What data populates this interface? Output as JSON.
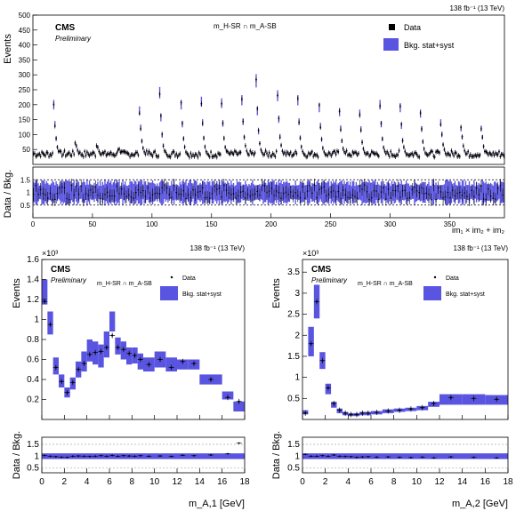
{
  "colors": {
    "band": "#5a55e0",
    "data": "#000000",
    "ref_line": "#000000"
  },
  "chart_data": [
    {
      "type": "bar",
      "panel": "top",
      "lumi": "138 fb⁻¹ (13 TeV)",
      "cms": "CMS",
      "prelim": "Preliminary",
      "region": "m_H-SR ∩ m_A-SB",
      "ylabel": "Events",
      "ratio_label": "Data / Bkg.",
      "xlabel": "im₁ × im₂ + im₂",
      "xlim": [
        0,
        396
      ],
      "ylim": [
        0,
        500
      ],
      "yticks": [
        50,
        100,
        150,
        200,
        250,
        300,
        350,
        400,
        450,
        500
      ],
      "xticks": [
        0,
        50,
        100,
        150,
        200,
        250,
        300,
        350
      ],
      "ratio_ylim": [
        0,
        2
      ],
      "ratio_yticks": [
        0.5,
        1,
        1.5
      ],
      "legend": [
        "Data",
        "Bkg. stat+syst"
      ],
      "peaks": [
        {
          "bin": 17,
          "value": 200
        },
        {
          "bin": 35,
          "value": 70
        },
        {
          "bin": 53,
          "value": 60
        },
        {
          "bin": 71,
          "value": 50
        },
        {
          "bin": 89,
          "value": 180
        },
        {
          "bin": 106,
          "value": 240
        },
        {
          "bin": 124,
          "value": 200
        },
        {
          "bin": 141,
          "value": 210
        },
        {
          "bin": 158,
          "value": 205
        },
        {
          "bin": 175,
          "value": 215
        },
        {
          "bin": 187,
          "value": 280
        },
        {
          "bin": 205,
          "value": 230
        },
        {
          "bin": 222,
          "value": 215
        },
        {
          "bin": 240,
          "value": 190
        },
        {
          "bin": 257,
          "value": 175
        },
        {
          "bin": 274,
          "value": 170
        },
        {
          "bin": 291,
          "value": 200
        },
        {
          "bin": 308,
          "value": 190
        },
        {
          "bin": 325,
          "value": 170
        },
        {
          "bin": 342,
          "value": 140
        },
        {
          "bin": 359,
          "value": 120
        },
        {
          "bin": 376,
          "value": 120
        }
      ],
      "baseline": 25
    },
    {
      "type": "bar",
      "panel": "bottom-left",
      "lumi": "138 fb⁻¹ (13 TeV)",
      "cms": "CMS",
      "prelim": "Preliminary",
      "region": "m_H-SR ∩ m_A-SB",
      "exponent": "×10³",
      "ylabel": "Events",
      "ratio_label": "Data / Bkg.",
      "xlabel": "m_A,1 [GeV]",
      "xlim": [
        0,
        18
      ],
      "ylim": [
        0,
        1.6
      ],
      "yticks": [
        0.2,
        0.4,
        0.6,
        0.8,
        1,
        1.2,
        1.4,
        1.6
      ],
      "xticks": [
        0,
        2,
        4,
        6,
        8,
        10,
        12,
        14,
        16,
        18
      ],
      "ratio_ylim": [
        0.3,
        1.8
      ],
      "ratio_yticks": [
        0.5,
        1,
        1.5
      ],
      "legend": [
        "Data",
        "Bkg. stat+syst"
      ],
      "bin_edges": [
        0,
        0.5,
        1,
        1.5,
        2,
        2.5,
        3,
        3.5,
        4,
        4.5,
        5,
        5.5,
        6,
        6.5,
        7,
        7.5,
        8,
        8.5,
        9,
        10,
        11,
        12,
        13,
        14,
        16,
        17,
        18
      ],
      "bkg_low": [
        1.15,
        0.85,
        0.45,
        0.32,
        0.22,
        0.3,
        0.42,
        0.48,
        0.58,
        0.55,
        0.52,
        0.62,
        0.88,
        0.65,
        0.6,
        0.55,
        0.56,
        0.5,
        0.48,
        0.52,
        0.48,
        0.5,
        0.5,
        0.35,
        0.2,
        0.08
      ],
      "bkg_high": [
        1.4,
        1.08,
        0.62,
        0.45,
        0.32,
        0.42,
        0.58,
        0.68,
        0.8,
        0.78,
        0.75,
        0.88,
        1.08,
        0.82,
        0.78,
        0.72,
        0.72,
        0.66,
        0.62,
        0.68,
        0.62,
        0.6,
        0.6,
        0.45,
        0.28,
        0.18
      ],
      "data_x": [
        0.25,
        0.75,
        1.25,
        1.75,
        2.25,
        2.75,
        3.25,
        3.75,
        4.25,
        4.75,
        5.25,
        5.75,
        6.25,
        6.75,
        7.25,
        7.75,
        8.25,
        8.75,
        9.5,
        10.5,
        11.5,
        12.5,
        13.5,
        15,
        16.5,
        17.5
      ],
      "data_y": [
        1.18,
        0.95,
        0.52,
        0.38,
        0.27,
        0.37,
        0.5,
        0.56,
        0.65,
        0.67,
        0.68,
        0.72,
        0.84,
        0.72,
        0.7,
        0.66,
        0.64,
        0.6,
        0.55,
        0.6,
        0.52,
        0.58,
        0.56,
        0.4,
        0.22,
        0.18
      ],
      "ratio_y": [
        1.03,
        1.0,
        0.98,
        0.96,
        0.95,
        1.0,
        1.01,
        1.0,
        0.99,
        1.0,
        1.02,
        1.0,
        1.03,
        1.0,
        1.02,
        1.01,
        1.0,
        1.02,
        1.0,
        1.01,
        0.99,
        1.04,
        1.02,
        1.05,
        1.1,
        1.55
      ]
    },
    {
      "type": "bar",
      "panel": "bottom-right",
      "lumi": "138 fb⁻¹ (13 TeV)",
      "cms": "CMS",
      "prelim": "Preliminary",
      "region": "m_H-SR ∩ m_A-SB",
      "exponent": "×10³",
      "ylabel": "Events",
      "ratio_label": "Data / Bkg.",
      "xlabel": "m_A,2 [GeV]",
      "xlim": [
        0,
        18
      ],
      "ylim": [
        0,
        3.8
      ],
      "yticks": [
        0.5,
        1,
        1.5,
        2,
        2.5,
        3,
        3.5
      ],
      "xticks": [
        0,
        2,
        4,
        6,
        8,
        10,
        12,
        14,
        16,
        18
      ],
      "ratio_ylim": [
        0.3,
        1.8
      ],
      "ratio_yticks": [
        0.5,
        1,
        1.5
      ],
      "legend": [
        "Data",
        "Bkg. stat+syst"
      ],
      "bin_edges": [
        0,
        0.5,
        1,
        1.5,
        2,
        2.5,
        3,
        3.5,
        4,
        4.5,
        5,
        5.5,
        6,
        7,
        8,
        9,
        10,
        11,
        12,
        14,
        16,
        18
      ],
      "bkg_low": [
        0.12,
        1.5,
        2.4,
        1.2,
        0.6,
        0.28,
        0.15,
        0.1,
        0.08,
        0.08,
        0.1,
        0.1,
        0.12,
        0.15,
        0.18,
        0.2,
        0.22,
        0.3,
        0.35,
        0.35,
        0.35
      ],
      "bkg_high": [
        0.22,
        2.2,
        3.2,
        1.6,
        0.85,
        0.42,
        0.26,
        0.18,
        0.15,
        0.15,
        0.18,
        0.18,
        0.2,
        0.24,
        0.26,
        0.28,
        0.32,
        0.42,
        0.6,
        0.6,
        0.58
      ],
      "data_x": [
        0.25,
        0.75,
        1.25,
        1.75,
        2.25,
        2.75,
        3.25,
        3.75,
        4.25,
        4.75,
        5.25,
        5.75,
        6.5,
        7.5,
        8.5,
        9.5,
        10.5,
        11.5,
        13,
        15,
        17
      ],
      "data_y": [
        0.15,
        1.8,
        2.8,
        1.4,
        0.75,
        0.38,
        0.22,
        0.15,
        0.12,
        0.12,
        0.15,
        0.15,
        0.17,
        0.2,
        0.22,
        0.25,
        0.28,
        0.38,
        0.52,
        0.5,
        0.48
      ],
      "ratio_y": [
        1.08,
        1.0,
        1.0,
        1.02,
        1.0,
        1.05,
        1.0,
        0.99,
        0.98,
        0.95,
        0.97,
        0.98,
        0.96,
        0.97,
        0.95,
        0.94,
        0.96,
        0.93,
        0.97,
        0.95,
        0.93
      ]
    }
  ]
}
